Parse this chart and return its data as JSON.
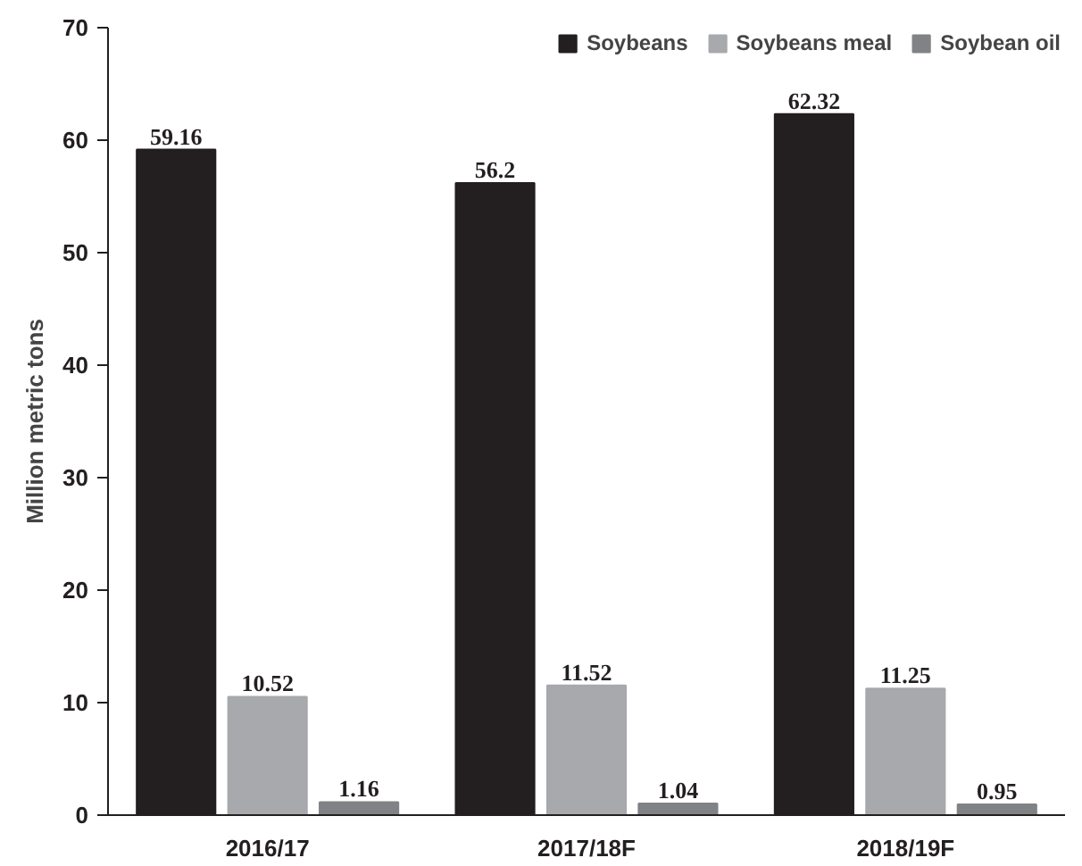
{
  "chart_data": {
    "type": "bar",
    "ylabel": "Million metric tons",
    "categories": [
      "2016/17",
      "2017/18F",
      "2018/19F"
    ],
    "series": [
      {
        "name": "Soybeans",
        "color": "#231f20",
        "values": [
          59.16,
          56.2,
          62.32
        ]
      },
      {
        "name": "Soybeans meal",
        "color": "#a7a9ac",
        "values": [
          10.52,
          11.52,
          11.25
        ]
      },
      {
        "name": "Soybean oil",
        "color": "#808285",
        "values": [
          1.16,
          1.04,
          0.95
        ]
      }
    ],
    "ylim": [
      0,
      70
    ],
    "yticks": [
      0,
      10,
      20,
      30,
      40,
      50,
      60,
      70
    ],
    "data_labels": true,
    "legend": "top right",
    "grid": false
  }
}
